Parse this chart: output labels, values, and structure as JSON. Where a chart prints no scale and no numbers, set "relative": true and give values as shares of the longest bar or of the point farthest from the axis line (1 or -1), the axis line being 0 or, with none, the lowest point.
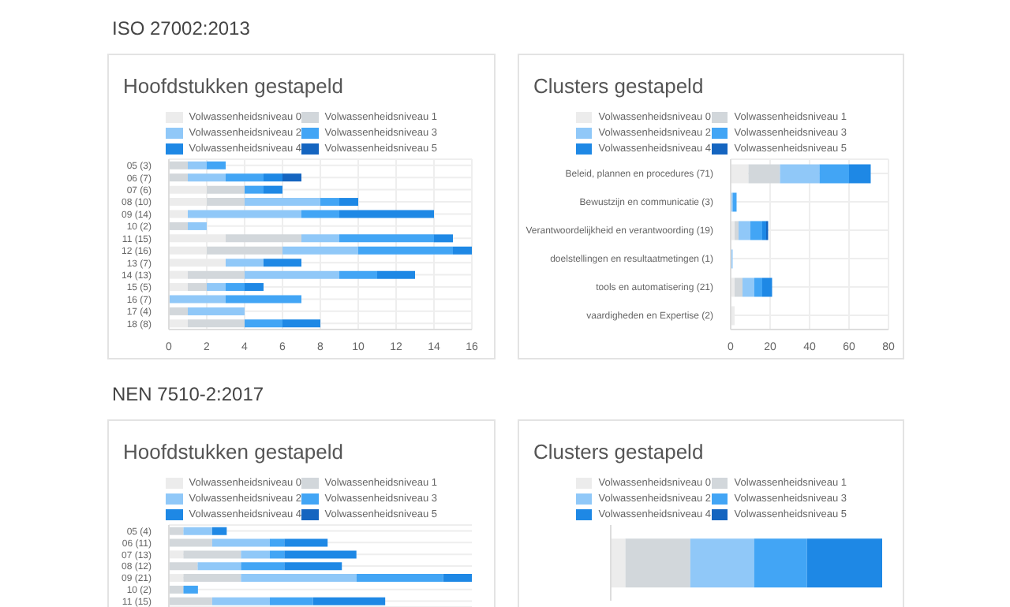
{
  "chart_data": [
    {
      "type": "bar",
      "orientation": "horizontal",
      "stacked": true,
      "title": "Hoofdstukken gestapeld",
      "annotations": [
        "ISO 27002:2013"
      ],
      "legend": "top",
      "grid": true,
      "categories": [
        "05 (3)",
        "06 (7)",
        "07 (6)",
        "08 (10)",
        "09 (14)",
        "10 (2)",
        "11 (15)",
        "12 (16)",
        "13 (7)",
        "14 (13)",
        "15 (5)",
        "16 (7)",
        "17 (4)",
        "18 (8)"
      ],
      "xlim": [
        0,
        16
      ],
      "xticks": [
        0,
        2,
        4,
        6,
        8,
        10,
        12,
        14,
        16
      ],
      "series": [
        {
          "name": "Volwassenheidsniveau 0",
          "color": "#ececec",
          "values": [
            0,
            0,
            2,
            2,
            1,
            0,
            3,
            2,
            3,
            1,
            1,
            0,
            0,
            1
          ]
        },
        {
          "name": "Volwassenheidsniveau 1",
          "color": "#d2d7db",
          "values": [
            1,
            1,
            2,
            2,
            0,
            1,
            4,
            4,
            0,
            3,
            1,
            0,
            1,
            3
          ]
        },
        {
          "name": "Volwassenheidsniveau 2",
          "color": "#90c8f8",
          "values": [
            1,
            2,
            0,
            4,
            6,
            1,
            2,
            4,
            2,
            5,
            1,
            3,
            3,
            0
          ]
        },
        {
          "name": "Volwassenheidsniveau 3",
          "color": "#42a5f5",
          "values": [
            1,
            2,
            1,
            1,
            2,
            0,
            5,
            5,
            0,
            2,
            1,
            4,
            0,
            2
          ]
        },
        {
          "name": "Volwassenheidsniveau 4",
          "color": "#1e88e5",
          "values": [
            0,
            1,
            1,
            1,
            5,
            0,
            1,
            1,
            2,
            2,
            1,
            0,
            0,
            2
          ]
        },
        {
          "name": "Volwassenheidsniveau 5",
          "color": "#1565c0",
          "values": [
            0,
            1,
            0,
            0,
            0,
            0,
            0,
            0,
            0,
            0,
            0,
            0,
            0,
            0
          ]
        }
      ]
    },
    {
      "type": "bar",
      "orientation": "horizontal",
      "stacked": true,
      "title": "Clusters gestapeld",
      "legend": "top",
      "grid": true,
      "categories": [
        "Beleid, plannen en procedures (71)",
        "Bewustzijn en communicatie (3)",
        "Verantwoordelijkheid en verantwoording (19)",
        "doelstellingen en resultaatmetingen (1)",
        "tools en automatisering (21)",
        "vaardigheden en Expertise (2)"
      ],
      "xlim": [
        0,
        80
      ],
      "xticks": [
        0,
        20,
        40,
        60,
        80
      ],
      "series": [
        {
          "name": "Volwassenheidsniveau 0",
          "color": "#ececec",
          "values": [
            9,
            0,
            2,
            0,
            2,
            2
          ]
        },
        {
          "name": "Volwassenheidsniveau 1",
          "color": "#d2d7db",
          "values": [
            16,
            0,
            2,
            0,
            4,
            0
          ]
        },
        {
          "name": "Volwassenheidsniveau 2",
          "color": "#90c8f8",
          "values": [
            20,
            1,
            6,
            1,
            6,
            0
          ]
        },
        {
          "name": "Volwassenheidsniveau 3",
          "color": "#42a5f5",
          "values": [
            15,
            2,
            6,
            0,
            4,
            0
          ]
        },
        {
          "name": "Volwassenheidsniveau 4",
          "color": "#1e88e5",
          "values": [
            11,
            0,
            2,
            0,
            5,
            0
          ]
        },
        {
          "name": "Volwassenheidsniveau 5",
          "color": "#1565c0",
          "values": [
            0,
            0,
            1,
            0,
            0,
            0
          ]
        }
      ]
    },
    {
      "type": "bar",
      "orientation": "horizontal",
      "stacked": true,
      "relative": true,
      "title": "Hoofdstukken gestapeld",
      "annotations": [
        "NEN 7510-2:2017"
      ],
      "legend": "top",
      "grid": "y",
      "categories": [
        "05 (4)",
        "06 (11)",
        "07 (13)",
        "08 (12)",
        "09 (21)",
        "10 (2)",
        "11 (15)"
      ],
      "series": [
        {
          "name": "Volwassenheidsniveau 0",
          "color": "#ececec",
          "values": [
            0,
            0,
            0.048,
            0,
            0.048,
            0,
            0
          ]
        },
        {
          "name": "Volwassenheidsniveau 1",
          "color": "#d2d7db",
          "values": [
            0.048,
            0.143,
            0.19,
            0.095,
            0.19,
            0.048,
            0.143
          ]
        },
        {
          "name": "Volwassenheidsniveau 2",
          "color": "#90c8f8",
          "values": [
            0.095,
            0.19,
            0.095,
            0.143,
            0.381,
            0,
            0.19
          ]
        },
        {
          "name": "Volwassenheidsniveau 3",
          "color": "#42a5f5",
          "values": [
            0,
            0.048,
            0.048,
            0.143,
            0.286,
            0.048,
            0.143
          ]
        },
        {
          "name": "Volwassenheidsniveau 4",
          "color": "#1e88e5",
          "values": [
            0.048,
            0.143,
            0.238,
            0.19,
            0.095,
            0,
            0.238
          ]
        },
        {
          "name": "Volwassenheidsniveau 5",
          "color": "#1565c0",
          "values": [
            0,
            0,
            0,
            0,
            0,
            0,
            0
          ]
        }
      ]
    },
    {
      "type": "bar",
      "orientation": "horizontal",
      "stacked": true,
      "relative": true,
      "title": "Clusters gestapeld",
      "legend": "top",
      "categories": [
        null
      ],
      "series": [
        {
          "name": "Volwassenheidsniveau 0",
          "color": "#ececec",
          "values": [
            0.054
          ]
        },
        {
          "name": "Volwassenheidsniveau 1",
          "color": "#d2d7db",
          "values": [
            0.239
          ]
        },
        {
          "name": "Volwassenheidsniveau 2",
          "color": "#90c8f8",
          "values": [
            0.235
          ]
        },
        {
          "name": "Volwassenheidsniveau 3",
          "color": "#42a5f5",
          "values": [
            0.195
          ]
        },
        {
          "name": "Volwassenheidsniveau 4",
          "color": "#1e88e5",
          "values": [
            0.277
          ]
        },
        {
          "name": "Volwassenheidsniveau 5",
          "color": "#1565c0",
          "values": [
            0
          ]
        }
      ]
    }
  ]
}
